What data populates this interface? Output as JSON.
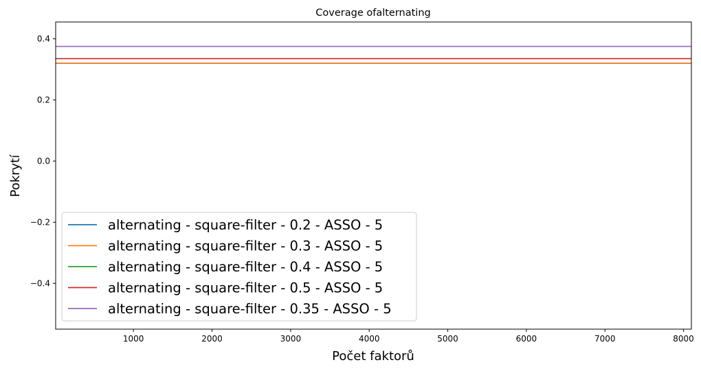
{
  "chart_data": {
    "type": "line",
    "title": "Coverage ofalternating",
    "xlabel": "Počet faktorů",
    "ylabel": "Pokrytí",
    "xlim": [
      10,
      8100
    ],
    "ylim": [
      -0.55,
      0.455
    ],
    "xticks": [
      1000,
      2000,
      3000,
      4000,
      5000,
      6000,
      7000,
      8000
    ],
    "xtick_labels": [
      "1000",
      "2000",
      "3000",
      "4000",
      "5000",
      "6000",
      "7000",
      "8000"
    ],
    "yticks": [
      -0.4,
      -0.2,
      0.0,
      0.2,
      0.4
    ],
    "ytick_labels": [
      "−0.4",
      "−0.2",
      "0.0",
      "0.2",
      "0.4"
    ],
    "grid": false,
    "legend_position": "lower-left",
    "series": [
      {
        "name": "alternating - square-filter - 0.2 - ASSO - 5",
        "color": "#1f77b4",
        "x": [
          10,
          8100
        ],
        "y": [
          0.32,
          0.32
        ]
      },
      {
        "name": "alternating - square-filter - 0.3 - ASSO - 5",
        "color": "#ff7f0e",
        "x": [
          10,
          8100
        ],
        "y": [
          0.32,
          0.32
        ]
      },
      {
        "name": "alternating - square-filter - 0.4 - ASSO - 5",
        "color": "#2ca02c",
        "x": [
          10,
          8100
        ],
        "y": [
          0.335,
          0.335
        ]
      },
      {
        "name": "alternating - square-filter - 0.5 - ASSO - 5",
        "color": "#d62728",
        "x": [
          10,
          8100
        ],
        "y": [
          0.335,
          0.335
        ]
      },
      {
        "name": "alternating - square-filter - 0.35 - ASSO - 5",
        "color": "#9467bd",
        "x": [
          10,
          8100
        ],
        "y": [
          0.375,
          0.375
        ]
      }
    ]
  }
}
